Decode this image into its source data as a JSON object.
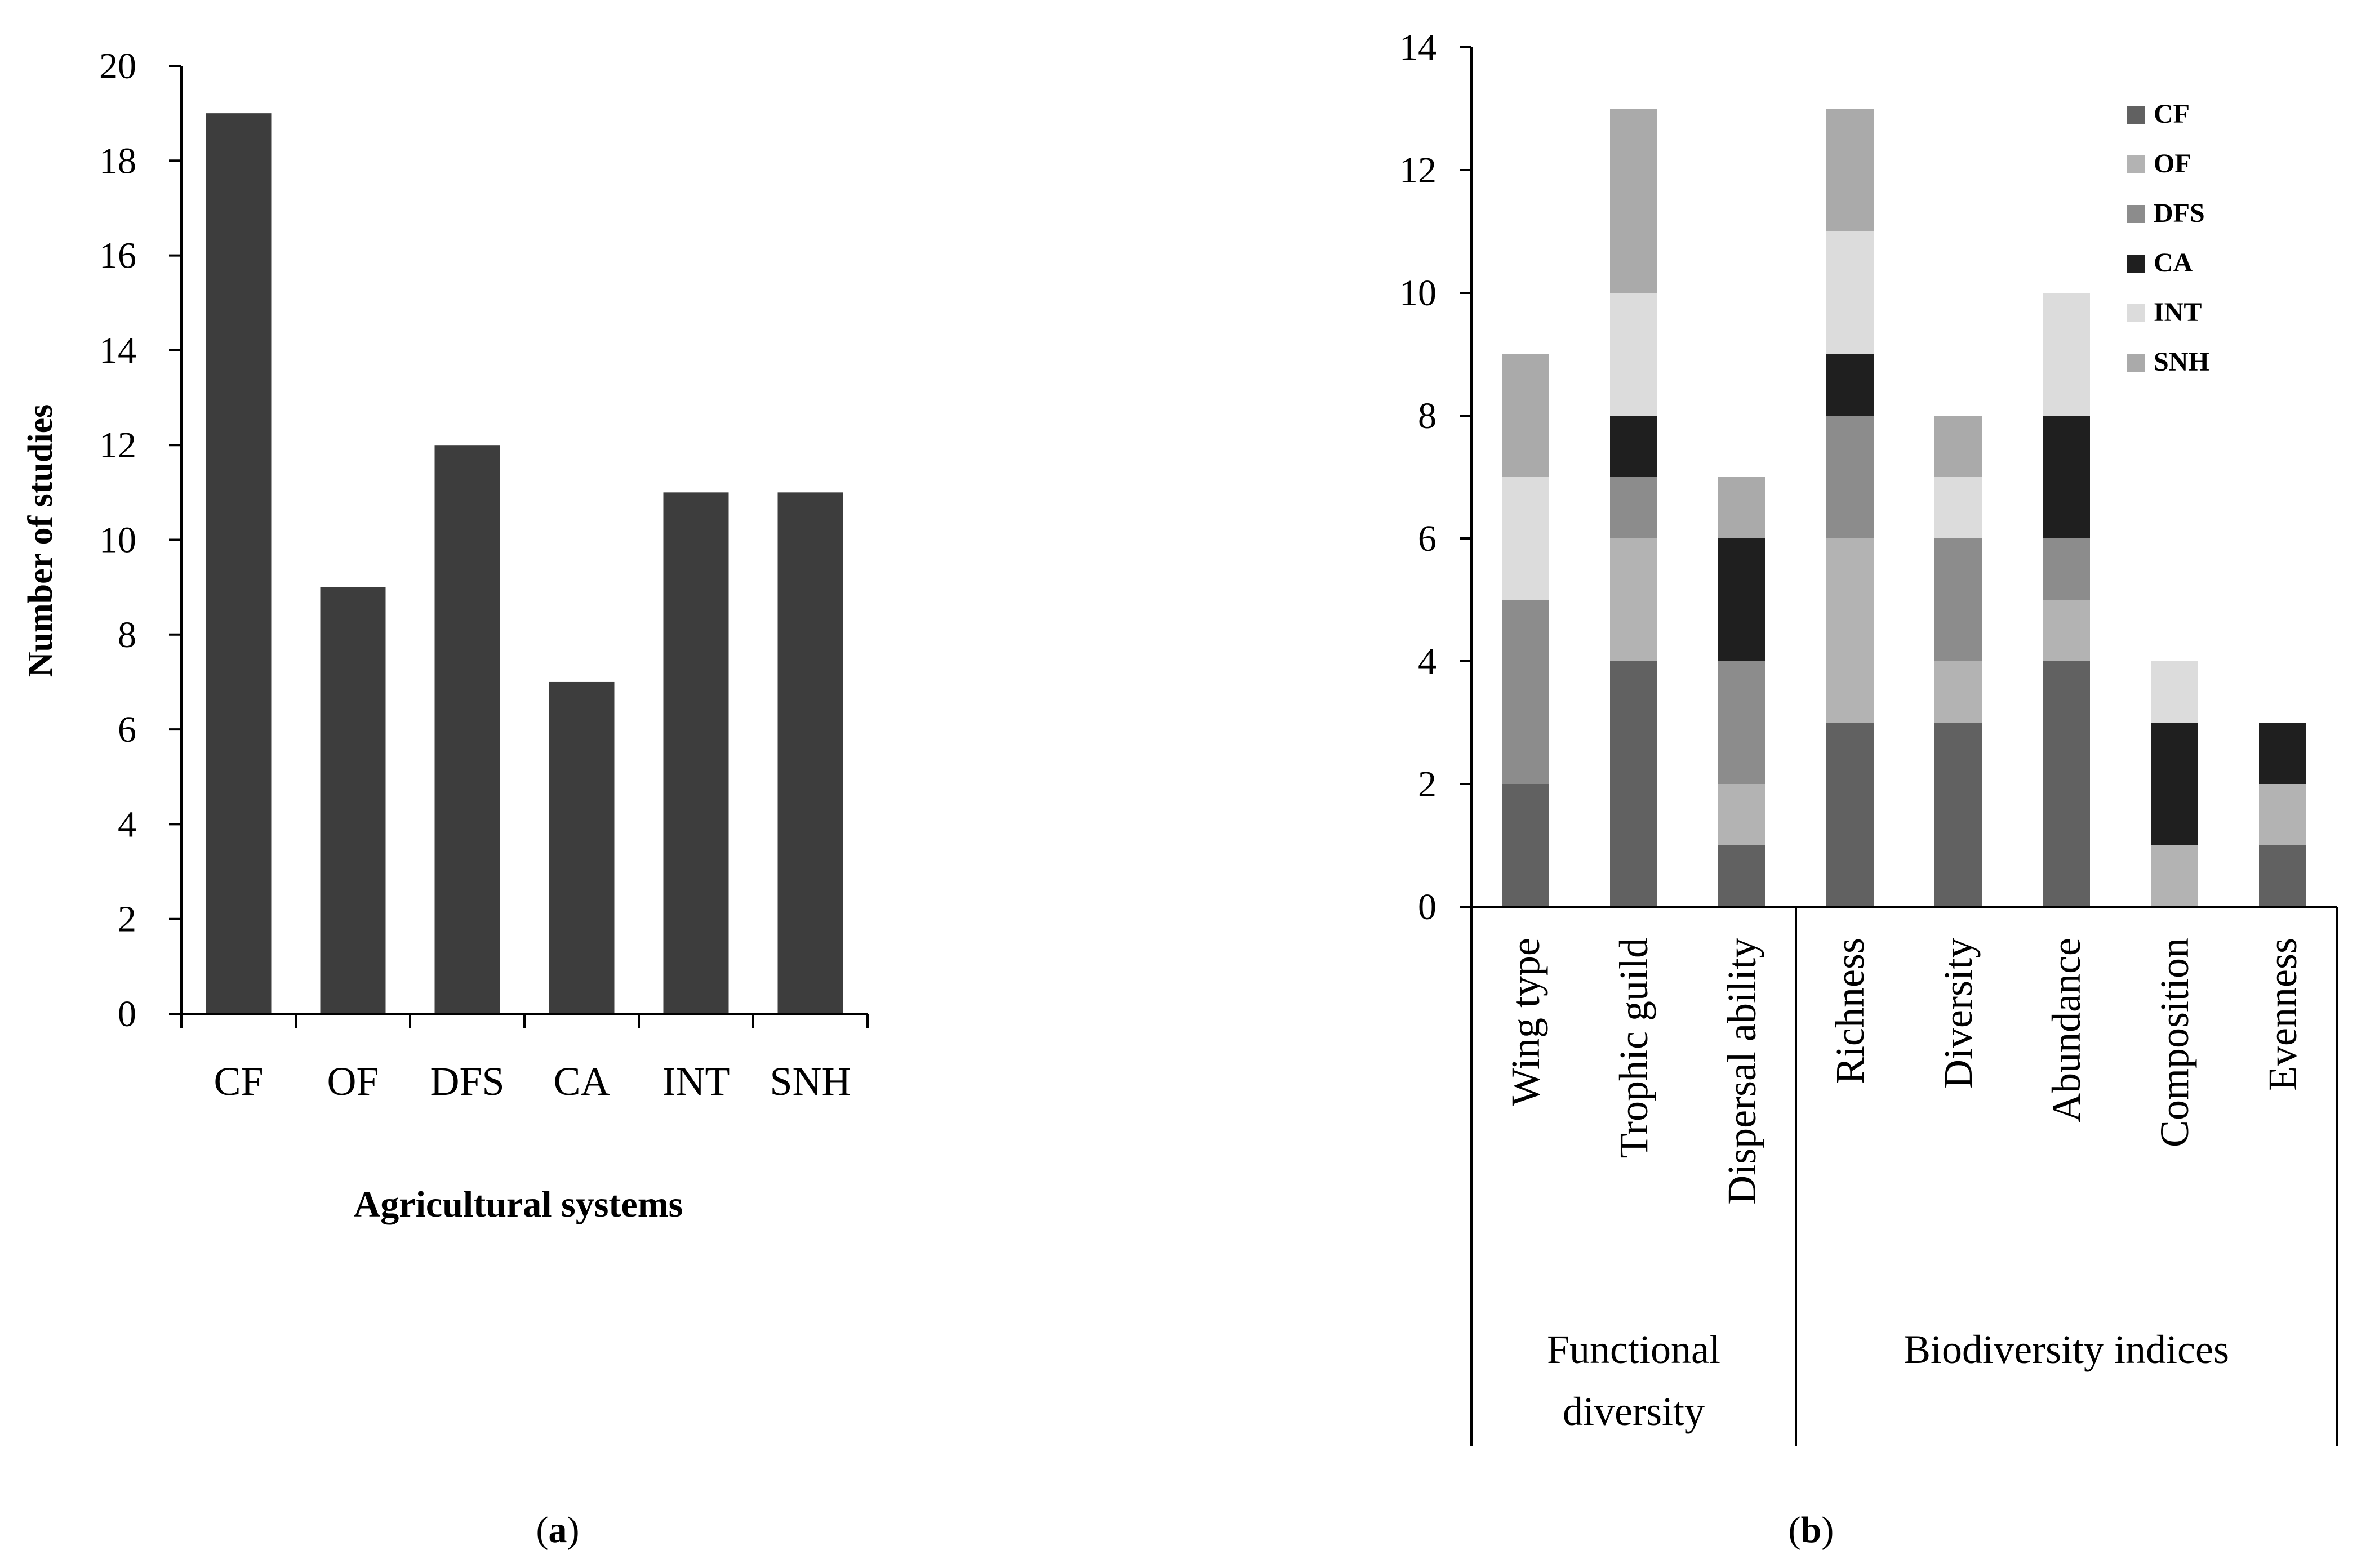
{
  "chart_data": [
    {
      "panel": "a",
      "type": "bar",
      "title": "",
      "xlabel": "Agricultural systems",
      "ylabel": "Number of studies",
      "ylim": [
        0,
        20
      ],
      "yticks": [
        0,
        2,
        4,
        6,
        8,
        10,
        12,
        14,
        16,
        18,
        20
      ],
      "categories": [
        "CF",
        "OF",
        "DFS",
        "CA",
        "INT",
        "SNH"
      ],
      "values": [
        19,
        9,
        12,
        7,
        11,
        11
      ],
      "color": "#3d3d3d",
      "grid": false
    },
    {
      "panel": "b",
      "type": "bar",
      "stacked": true,
      "title": "",
      "xlabel": "",
      "ylabel": "",
      "ylim": [
        0,
        14
      ],
      "yticks": [
        0,
        2,
        4,
        6,
        8,
        10,
        12,
        14
      ],
      "categories": [
        "Wing type",
        "Trophic guild",
        "Dispersal ability",
        "Richness",
        "Diversity",
        "Abundance",
        "Composition",
        "Evenness"
      ],
      "groups": [
        {
          "label_line1": "Functional",
          "label_line2": "diversity",
          "start": 0,
          "end": 2
        },
        {
          "label_line1": "Biodiversity indices",
          "label_line2": "",
          "start": 3,
          "end": 7
        }
      ],
      "series": [
        {
          "name": "CF",
          "color": "#616161",
          "values": [
            2,
            4,
            1,
            3,
            3,
            4,
            0,
            1
          ]
        },
        {
          "name": "OF",
          "color": "#b3b3b3",
          "values": [
            0,
            2,
            1,
            3,
            1,
            1,
            1,
            1
          ]
        },
        {
          "name": "DFS",
          "color": "#8c8c8c",
          "values": [
            3,
            1,
            2,
            2,
            2,
            1,
            0,
            0
          ]
        },
        {
          "name": "CA",
          "color": "#1f1f1f",
          "values": [
            0,
            1,
            2,
            1,
            0,
            2,
            2,
            1
          ]
        },
        {
          "name": "INT",
          "color": "#dcdcdc",
          "values": [
            2,
            2,
            0,
            2,
            1,
            2,
            1,
            0
          ]
        },
        {
          "name": "SNH",
          "color": "#aaaaaa",
          "values": [
            2,
            3,
            1,
            2,
            1,
            0,
            0,
            0
          ]
        }
      ],
      "legend": "top-right",
      "grid": false
    }
  ],
  "panel_labels": {
    "a": "a",
    "b": "b"
  }
}
